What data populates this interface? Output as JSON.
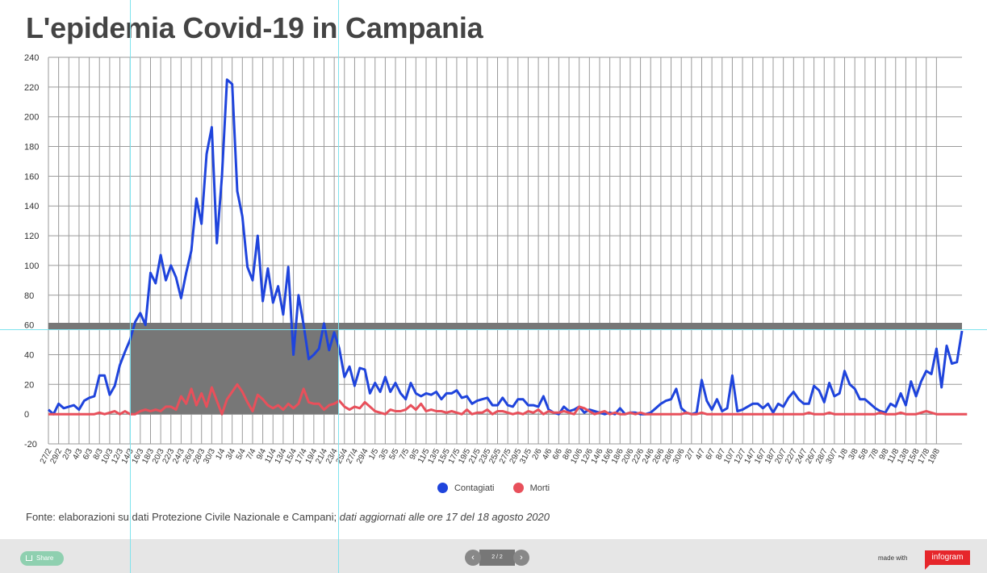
{
  "title": "L'epidemia Covid-19 in Campania",
  "chart_data": {
    "type": "line",
    "ylim": [
      -20,
      240
    ],
    "y_ticks": [
      240,
      220,
      200,
      180,
      160,
      140,
      120,
      100,
      80,
      60,
      40,
      20,
      0,
      -20
    ],
    "x_tick_labels": [
      "27/2",
      "29/2",
      "2/3",
      "4/3",
      "6/3",
      "8/3",
      "10/3",
      "12/3",
      "14/3",
      "16/3",
      "18/3",
      "20/3",
      "22/3",
      "24/3",
      "26/3",
      "28/3",
      "30/3",
      "1/4",
      "3/4",
      "5/4",
      "7/4",
      "9/4",
      "11/4",
      "13/4",
      "15/4",
      "17/4",
      "19/4",
      "21/4",
      "23/4",
      "25/4",
      "27/4",
      "29/4",
      "1/5",
      "3/5",
      "5/5",
      "7/5",
      "9/5",
      "11/5",
      "13/5",
      "15/5",
      "17/5",
      "19/5",
      "21/5",
      "23/5",
      "25/5",
      "27/5",
      "29/5",
      "31/5",
      "2/6",
      "4/6",
      "6/6",
      "8/6",
      "10/6",
      "12/6",
      "14/6",
      "16/6",
      "18/6",
      "20/6",
      "22/6",
      "24/6",
      "26/6",
      "28/6",
      "30/6",
      "2/7",
      "4/7",
      "6/7",
      "8/7",
      "10/7",
      "12/7",
      "14/7",
      "16/7",
      "18/7",
      "20/7",
      "22/7",
      "24/7",
      "26/7",
      "28/7",
      "30/7",
      "1/8",
      "3/8",
      "5/8",
      "7/8",
      "9/8",
      "11/8",
      "13/8",
      "15/8",
      "17/8",
      "19/8"
    ],
    "series": [
      {
        "name": "Contagiati",
        "color": "#1f44dc",
        "values": [
          3,
          0,
          7,
          4,
          5,
          6,
          3,
          9,
          11,
          12,
          26,
          26,
          13,
          19,
          33,
          42,
          50,
          62,
          68,
          60,
          95,
          88,
          107,
          90,
          100,
          92,
          78,
          95,
          110,
          145,
          128,
          175,
          193,
          115,
          160,
          225,
          222,
          150,
          133,
          99,
          90,
          120,
          76,
          98,
          75,
          86,
          67,
          99,
          40,
          80,
          60,
          37,
          40,
          44,
          61,
          43,
          55,
          44,
          25,
          32,
          19,
          31,
          30,
          14,
          21,
          15,
          25,
          15,
          21,
          14,
          10,
          21,
          14,
          12,
          14,
          13,
          15,
          10,
          14,
          14,
          16,
          11,
          12,
          7,
          9,
          10,
          11,
          6,
          6,
          11,
          6,
          5,
          10,
          10,
          6,
          6,
          5,
          12,
          3,
          1,
          0,
          5,
          2,
          3,
          5,
          1,
          3,
          2,
          1,
          0,
          1,
          0,
          4,
          0,
          1,
          1,
          0,
          0,
          1,
          4,
          7,
          9,
          10,
          17,
          4,
          1,
          0,
          1,
          23,
          9,
          3,
          10,
          2,
          4,
          26,
          2,
          3,
          5,
          7,
          7,
          4,
          7,
          1,
          7,
          5,
          11,
          15,
          10,
          7,
          7,
          19,
          16,
          8,
          21,
          12,
          14,
          29,
          20,
          17,
          10,
          10,
          7,
          4,
          2,
          1,
          7,
          5,
          14,
          6,
          22,
          12,
          22,
          29,
          27,
          44,
          18,
          46,
          34,
          35,
          56
        ],
        "valuesNote": "daily new cases"
      },
      {
        "name": "Morti",
        "color": "#e8505b",
        "values": [
          0,
          0,
          0,
          0,
          0,
          0,
          0,
          0,
          0,
          0,
          1,
          0,
          1,
          2,
          0,
          2,
          0,
          0,
          2,
          3,
          2,
          3,
          2,
          5,
          5,
          3,
          12,
          7,
          17,
          6,
          14,
          5,
          18,
          9,
          0,
          10,
          15,
          20,
          15,
          8,
          2,
          13,
          10,
          6,
          4,
          6,
          3,
          7,
          4,
          7,
          17,
          8,
          7,
          7,
          3,
          6,
          7,
          9,
          5,
          3,
          5,
          4,
          8,
          5,
          2,
          1,
          0,
          3,
          2,
          2,
          3,
          6,
          3,
          7,
          2,
          3,
          2,
          2,
          1,
          2,
          1,
          0,
          3,
          0,
          1,
          1,
          3,
          0,
          2,
          2,
          1,
          0,
          1,
          0,
          2,
          1,
          3,
          0,
          2,
          1,
          1,
          2,
          1,
          0,
          5,
          4,
          2,
          0,
          1,
          2,
          0,
          1,
          0,
          0,
          1,
          0,
          1,
          0,
          0,
          0,
          0,
          0,
          0,
          0,
          0,
          1,
          0,
          0,
          1,
          0,
          0,
          0,
          0,
          0,
          0,
          0,
          0,
          0,
          0,
          0,
          0,
          0,
          0,
          0,
          0,
          0,
          0,
          0,
          0,
          1,
          0,
          0,
          0,
          1,
          0,
          0,
          0,
          0,
          0,
          0,
          0,
          0,
          0,
          1,
          0,
          0,
          0,
          1,
          0,
          0,
          0,
          1,
          2,
          1,
          0,
          0,
          0,
          0,
          0,
          0,
          0
        ]
      }
    ]
  },
  "legend": {
    "items": [
      {
        "label": "Contagiati",
        "color": "#1f44dc"
      },
      {
        "label": "Morti",
        "color": "#e8505b"
      }
    ]
  },
  "source": {
    "text": "Fonte: elaborazioni su dati Protezione Civile Nazionale e Campani;",
    "italic": "dati aggiornati alle ore 17 del 18 agosto 2020"
  },
  "footer": {
    "share_label": "Share",
    "pager_label": "2 / 2",
    "prev_icon": "chevron-left-icon",
    "next_icon": "chevron-right-icon",
    "made_with": "made with",
    "logo_text": "infogram"
  }
}
